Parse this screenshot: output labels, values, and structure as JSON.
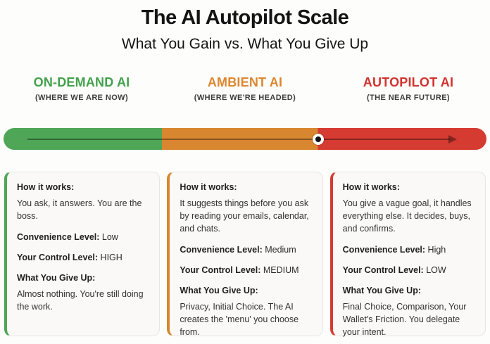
{
  "title": "The AI Autopilot Scale",
  "subtitle": "What You Gain vs. What You Give Up",
  "scale": {
    "marker_position_pct": 65.1,
    "segments": [
      {
        "name": "on-demand",
        "color": "#4ea656",
        "start_pct": 0,
        "end_pct": 32.8
      },
      {
        "name": "ambient",
        "color": "#d8862f",
        "start_pct": 32.8,
        "end_pct": 65.1
      },
      {
        "name": "autopilot",
        "color": "#d63b31",
        "start_pct": 65.1,
        "end_pct": 100
      }
    ]
  },
  "columns": [
    {
      "header": "ON-DEMAND AI",
      "subheader": "(WHERE WE ARE NOW)",
      "accent_color": "#43a14b",
      "card": {
        "how_label": "How it works:",
        "how_text": "You ask, it answers. You are the boss.",
        "convenience_label": "Convenience Level:",
        "convenience_value": "Low",
        "control_label": "Your Control Level:",
        "control_value": "HIGH",
        "give_up_label": "What You Give Up:",
        "give_up_text": "Almost nothing. You're still doing the work."
      }
    },
    {
      "header": "AMBIENT AI",
      "subheader": "(WHERE WE'RE HEADED)",
      "accent_color": "#dd8630",
      "card": {
        "how_label": "How it works:",
        "how_text": "It suggests things before you ask by reading your emails, calendar, and chats.",
        "convenience_label": "Convenience Level:",
        "convenience_value": "Medium",
        "control_label": "Your Control Level:",
        "control_value": "MEDIUM",
        "give_up_label": "What You Give Up:",
        "give_up_text": "Privacy, Initial Choice. The AI creates the 'menu' you choose from."
      }
    },
    {
      "header": "AUTOPILOT AI",
      "subheader": "(THE NEAR FUTURE)",
      "accent_color": "#d2312d",
      "card": {
        "how_label": "How it works:",
        "how_text": "You give a vague goal, it handles everything else. It decides, buys, and confirms.",
        "convenience_label": "Convenience Level:",
        "convenience_value": "High",
        "control_label": "Your Control Level:",
        "control_value": "LOW",
        "give_up_label": "What You Give Up:",
        "give_up_text": "Final Choice, Comparison, Your Wallet's Friction. You delegate your intent."
      }
    }
  ]
}
